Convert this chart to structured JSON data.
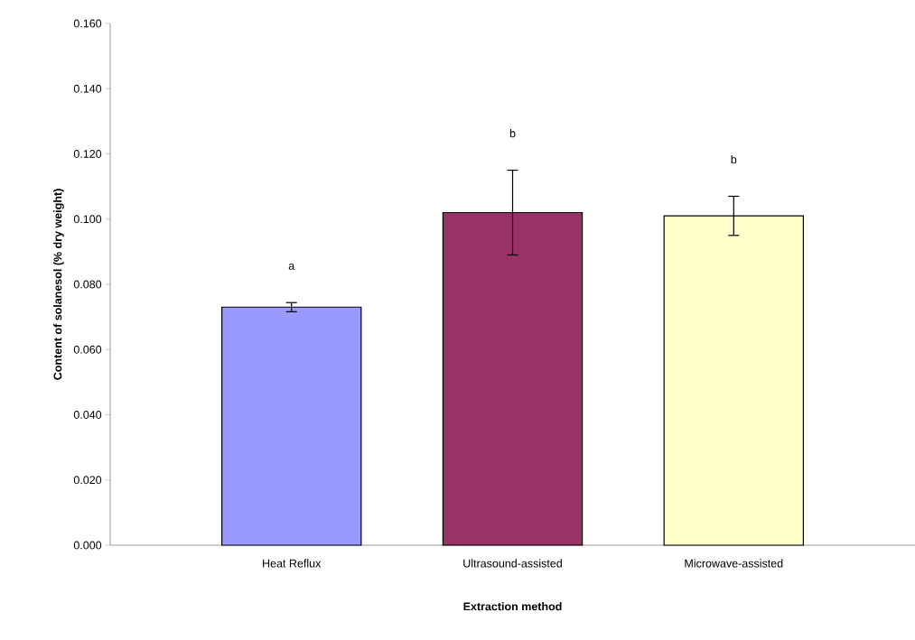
{
  "chart_data": {
    "type": "bar",
    "xlabel": "Extraction method",
    "ylabel": "Content of solanesol (% dry weight)",
    "categories": [
      "Heat Reflux",
      "Ultrasound-assisted",
      "Microwave-assisted"
    ],
    "values": [
      0.073,
      0.102,
      0.101
    ],
    "errors": [
      0.0014,
      0.013,
      0.006
    ],
    "colors": [
      "#9999ff",
      "#993366",
      "#ffffcc"
    ],
    "ylim": [
      0,
      0.16
    ],
    "yticks": [
      {
        "value": 0,
        "label": "0.000"
      },
      {
        "value": 0.02,
        "label": "0.020"
      },
      {
        "value": 0.04,
        "label": "0.040"
      },
      {
        "value": 0.06,
        "label": "0.060"
      },
      {
        "value": 0.08,
        "label": "0.080"
      },
      {
        "value": 0.1,
        "label": "0.100"
      },
      {
        "value": 0.12,
        "label": "0.120"
      },
      {
        "value": 0.14,
        "label": "0.140"
      },
      {
        "value": 0.16,
        "label": "0.160"
      }
    ],
    "annotations": [
      "a",
      "b",
      "b"
    ]
  }
}
